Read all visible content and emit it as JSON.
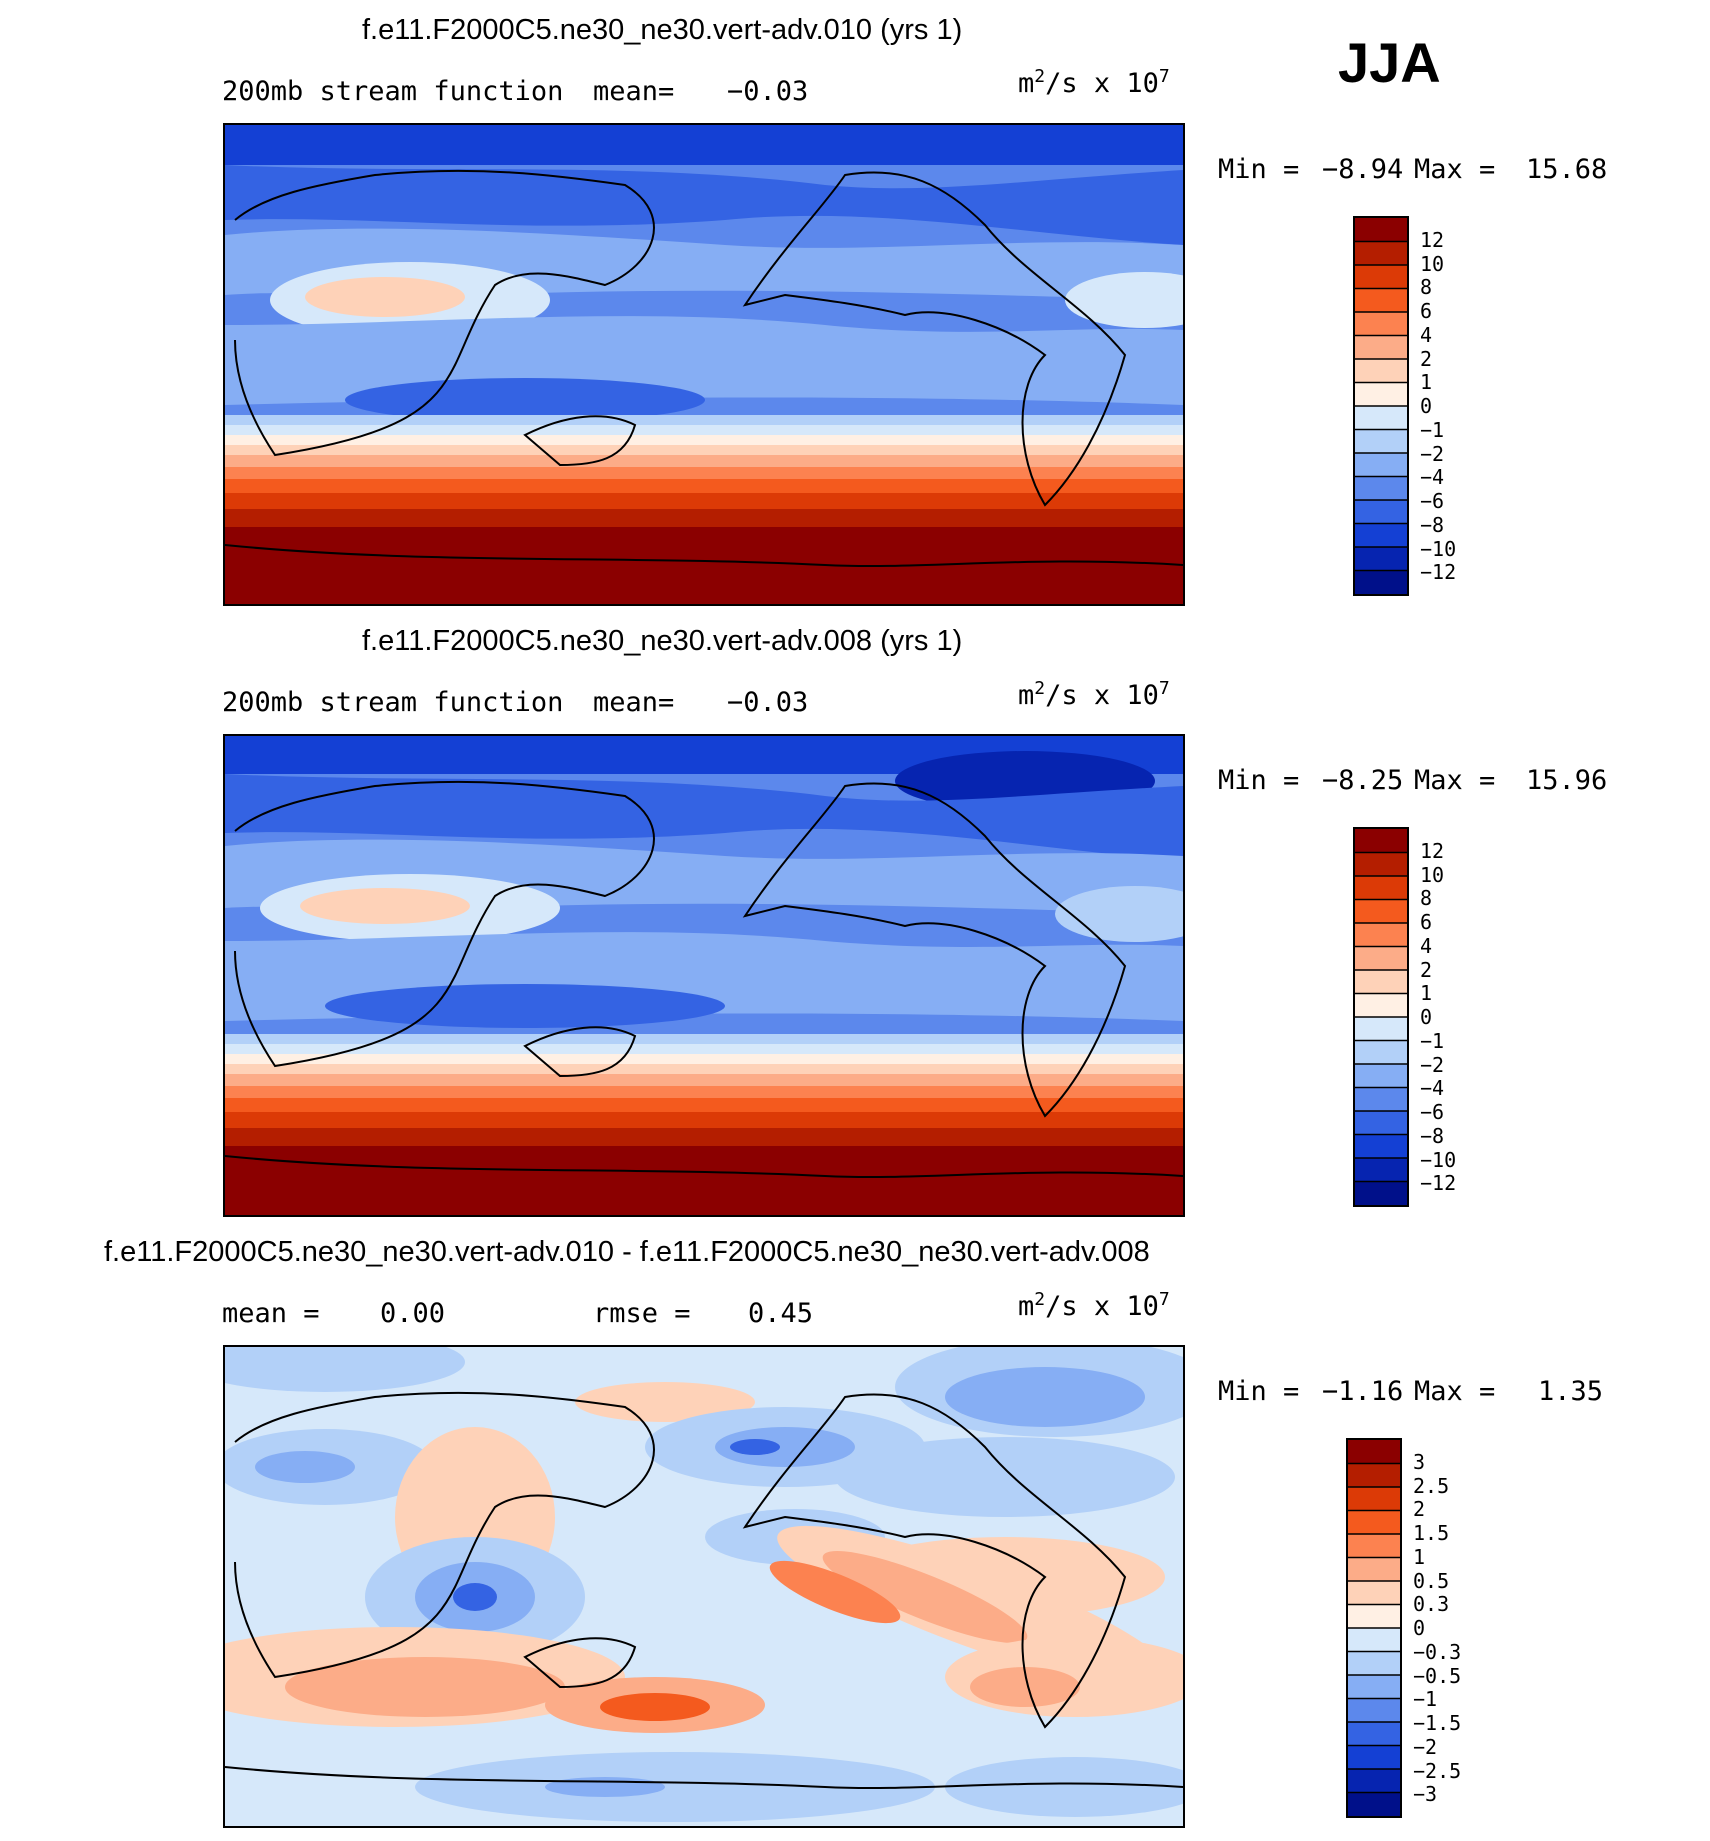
{
  "season": "JJA",
  "panels": [
    {
      "title": "f.e11.F2000C5.ne30_ne30.vert-adv.010 (yrs 1)",
      "field_label": "200mb stream function",
      "mean_label": "mean=",
      "mean_value": "−0.03",
      "units_base": "m",
      "units_sup": "2",
      "units_mid": "/s x 10",
      "units_exp": "7",
      "min_label": "Min =",
      "min_value": "−8.94",
      "max_label": "Max =",
      "max_value": "15.68"
    },
    {
      "title": "f.e11.F2000C5.ne30_ne30.vert-adv.008 (yrs 1)",
      "field_label": "200mb stream function",
      "mean_label": "mean=",
      "mean_value": "−0.03",
      "units_base": "m",
      "units_sup": "2",
      "units_mid": "/s x 10",
      "units_exp": "7",
      "min_label": "Min =",
      "min_value": "−8.25",
      "max_label": "Max =",
      "max_value": "15.96"
    },
    {
      "title": "f.e11.F2000C5.ne30_ne30.vert-adv.010 - f.e11.F2000C5.ne30_ne30.vert-adv.008",
      "mean_label": "mean =",
      "mean_value": "0.00",
      "rmse_label": "rmse =",
      "rmse_value": "0.45",
      "units_base": "m",
      "units_sup": "2",
      "units_mid": "/s x 10",
      "units_exp": "7",
      "min_label": "Min =",
      "min_value": "−1.16",
      "max_label": "Max =",
      "max_value": "1.35"
    }
  ],
  "chart_data": [
    {
      "type": "heatmap",
      "title": "f.e11.F2000C5.ne30_ne30.vert-adv.010 (yrs 1)",
      "subtitle": "200mb stream function",
      "mean": -0.03,
      "min": -8.94,
      "max": 15.68,
      "colorbar_levels": [
        "12",
        "10",
        "8",
        "6",
        "4",
        "2",
        "1",
        "0",
        "−1",
        "−2",
        "−4",
        "−6",
        "−8",
        "−10",
        "−12"
      ],
      "colorbar_colors": [
        "#8b0000",
        "#b41e00",
        "#dc3a06",
        "#f45a1e",
        "#fc8250",
        "#fcac88",
        "#fed2b8",
        "#fff0e4",
        "#d6e8fa",
        "#b2d0f8",
        "#86aef4",
        "#5c88ec",
        "#3463e3",
        "#1440d4",
        "#0624b0",
        "#00108a"
      ]
    },
    {
      "type": "heatmap",
      "title": "f.e11.F2000C5.ne30_ne30.vert-adv.008 (yrs 1)",
      "subtitle": "200mb stream function",
      "mean": -0.03,
      "min": -8.25,
      "max": 15.96,
      "colorbar_levels": [
        "12",
        "10",
        "8",
        "6",
        "4",
        "2",
        "1",
        "0",
        "−1",
        "−2",
        "−4",
        "−6",
        "−8",
        "−10",
        "−12"
      ],
      "colorbar_colors": [
        "#8b0000",
        "#b41e00",
        "#dc3a06",
        "#f45a1e",
        "#fc8250",
        "#fcac88",
        "#fed2b8",
        "#fff0e4",
        "#d6e8fa",
        "#b2d0f8",
        "#86aef4",
        "#5c88ec",
        "#3463e3",
        "#1440d4",
        "#0624b0",
        "#00108a"
      ]
    },
    {
      "type": "heatmap",
      "title": "f.e11.F2000C5.ne30_ne30.vert-adv.010 - f.e11.F2000C5.ne30_ne30.vert-adv.008",
      "mean": 0.0,
      "rmse": 0.45,
      "min": -1.16,
      "max": 1.35,
      "colorbar_levels": [
        "3",
        "2.5",
        "2",
        "1.5",
        "1",
        "0.5",
        "0.3",
        "0",
        "−0.3",
        "−0.5",
        "−1",
        "−1.5",
        "−2",
        "−2.5",
        "−3"
      ],
      "colorbar_colors": [
        "#8b0000",
        "#b41e00",
        "#dc3a06",
        "#f45a1e",
        "#fc8250",
        "#fcac88",
        "#fed2b8",
        "#fff0e4",
        "#d6e8fa",
        "#b2d0f8",
        "#86aef4",
        "#5c88ec",
        "#3463e3",
        "#1440d4",
        "#0624b0",
        "#00108a"
      ]
    }
  ]
}
